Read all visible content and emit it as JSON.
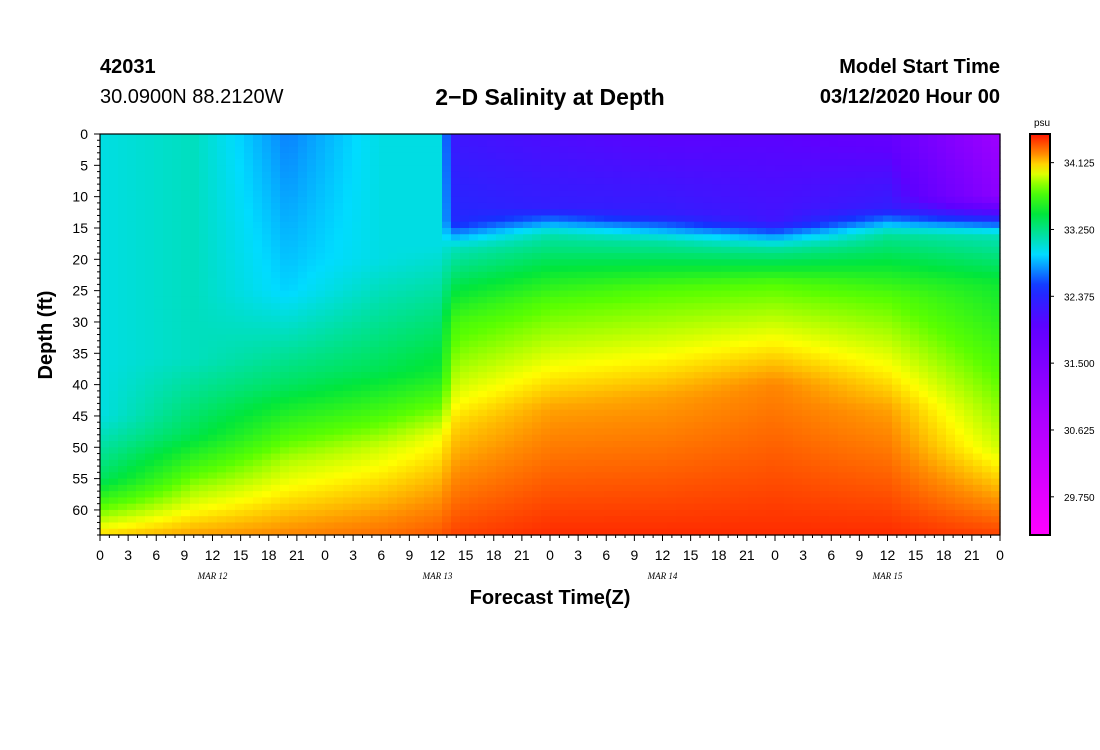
{
  "header": {
    "station_id": "42031",
    "location": "30.0900N 88.2120W",
    "title": "2−D Salinity at Depth",
    "start_label": "Model Start Time",
    "start_value": "03/12/2020 Hour 00"
  },
  "chart_data": {
    "type": "heatmap",
    "title": "2−D Salinity at Depth",
    "xlabel": "Forecast Time(Z)",
    "ylabel": "Depth (ft)",
    "units": "psu",
    "x_range_hours": [
      0,
      96
    ],
    "y_range_ft": [
      0,
      64
    ],
    "x_tick_labels": [
      "0",
      "3",
      "6",
      "9",
      "12",
      "15",
      "18",
      "21",
      "0",
      "3",
      "6",
      "9",
      "12",
      "15",
      "18",
      "21",
      "0",
      "3",
      "6",
      "9",
      "12",
      "15",
      "18",
      "21",
      "0",
      "3",
      "6",
      "9",
      "12",
      "15",
      "18",
      "21",
      "0"
    ],
    "y_ticks": [
      0,
      5,
      10,
      15,
      20,
      25,
      30,
      35,
      40,
      45,
      50,
      55,
      60
    ],
    "dates": [
      {
        "label": "MAR 12",
        "hour": 12
      },
      {
        "label": "MAR 13",
        "hour": 36
      },
      {
        "label": "MAR 14",
        "hour": 60
      },
      {
        "label": "MAR 15",
        "hour": 84
      }
    ],
    "colorbar": {
      "min": 29.25,
      "max": 34.5,
      "ticks": [
        34.125,
        33.25,
        32.375,
        31.5,
        30.625,
        29.75
      ],
      "tick_labels": [
        "34.125",
        "33.250",
        "32.375",
        "31.500",
        "30.625",
        "29.750"
      ]
    },
    "field_description": "Fresher water near surface; salinity increases with depth",
    "profile_columns": [
      {
        "hour": 0,
        "depths": [
          0,
          45,
          55,
          60,
          64
        ],
        "values": [
          33.0,
          33.0,
          33.35,
          33.8,
          34.1
        ]
      },
      {
        "hour": 10,
        "depths": [
          0,
          36,
          48,
          56,
          64
        ],
        "values": [
          33.1,
          33.1,
          33.4,
          33.85,
          34.2
        ]
      },
      {
        "hour": 20,
        "depths": [
          0,
          25,
          40,
          52,
          64
        ],
        "values": [
          32.7,
          32.9,
          33.35,
          33.9,
          34.25
        ]
      },
      {
        "hour": 30,
        "depths": [
          0,
          20,
          38,
          50,
          64
        ],
        "values": [
          33.0,
          33.0,
          33.4,
          33.95,
          34.3
        ]
      },
      {
        "hour": 36,
        "depths": [
          0,
          18,
          38,
          48,
          64
        ],
        "values": [
          33.0,
          33.0,
          33.5,
          34.0,
          34.35
        ]
      },
      {
        "hour": 38,
        "depths": [
          0,
          14,
          18,
          30,
          46,
          64
        ],
        "values": [
          32.2,
          32.4,
          33.1,
          33.7,
          34.1,
          34.4
        ]
      },
      {
        "hour": 48,
        "depths": [
          0,
          12,
          16,
          27,
          44,
          64
        ],
        "values": [
          32.1,
          32.3,
          33.15,
          33.75,
          34.2,
          34.45
        ]
      },
      {
        "hour": 60,
        "depths": [
          0,
          13,
          17,
          25,
          42,
          64
        ],
        "values": [
          32.0,
          32.3,
          33.15,
          33.75,
          34.2,
          34.45
        ]
      },
      {
        "hour": 72,
        "depths": [
          0,
          14,
          18,
          24,
          40,
          64
        ],
        "values": [
          32.0,
          32.2,
          33.15,
          33.75,
          34.25,
          34.45
        ]
      },
      {
        "hour": 84,
        "depths": [
          0,
          12,
          16,
          26,
          44,
          64
        ],
        "values": [
          31.9,
          32.3,
          33.2,
          33.75,
          34.2,
          34.45
        ]
      },
      {
        "hour": 96,
        "depths": [
          0,
          10,
          16,
          24,
          50,
          64
        ],
        "values": [
          31.0,
          31.3,
          33.1,
          33.5,
          33.95,
          34.4
        ]
      }
    ]
  }
}
